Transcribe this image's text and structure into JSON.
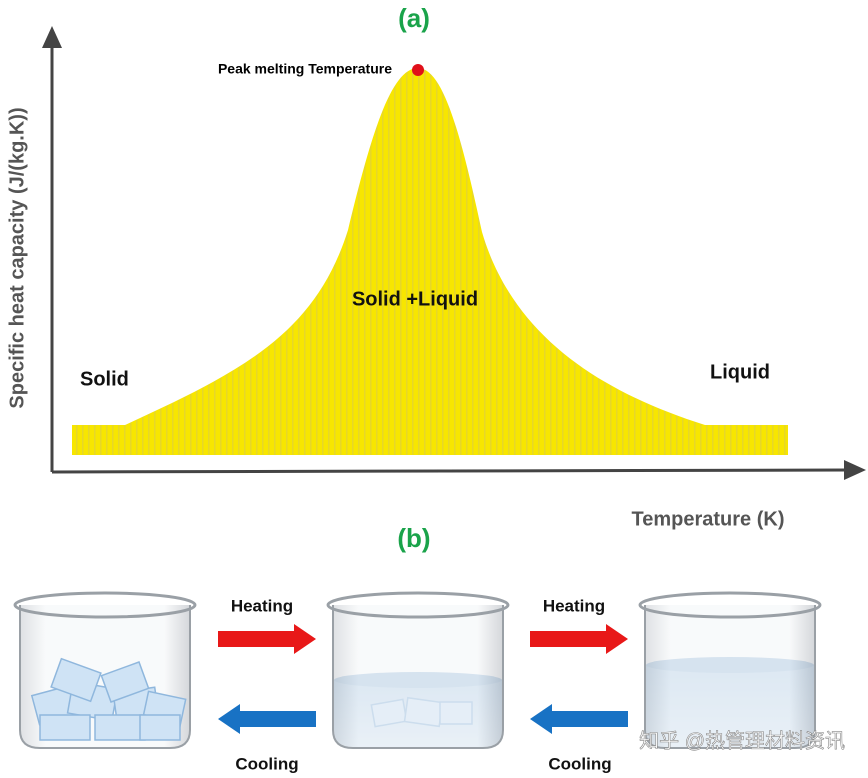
{
  "panel_a": {
    "label": "(a)",
    "annotation": "Peak melting Temperature",
    "y_axis_label": "Specific heat capacity (J/(kg.K))",
    "x_axis_label": "Temperature (K)",
    "regions": [
      "Solid",
      "Solid +Liquid",
      "Liquid"
    ]
  },
  "panel_b": {
    "label": "(b)",
    "transitions": [
      {
        "heating": "Heating",
        "cooling": "Cooling"
      },
      {
        "heating": "Heating",
        "cooling": "Cooling"
      }
    ]
  },
  "watermark": "知乎 @热管理材料资讯"
}
